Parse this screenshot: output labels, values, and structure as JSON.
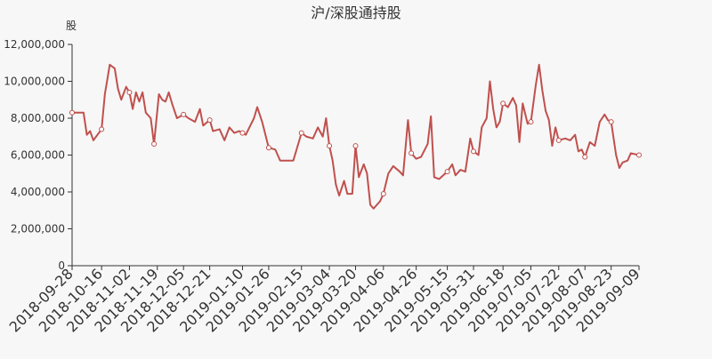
{
  "chart_data": {
    "type": "line",
    "title": "沪/深股通持股",
    "ylabel": "股",
    "xlabel": "",
    "ylim": [
      0,
      12000000
    ],
    "y_ticks": [
      "0",
      "2,000,000",
      "4,000,000",
      "6,000,000",
      "8,000,000",
      "10,000,000",
      "12,000,000"
    ],
    "x_ticks": [
      "2018-09-28",
      "2018-10-16",
      "2018-11-02",
      "2018-11-19",
      "2018-12-05",
      "2018-12-21",
      "2019-01-10",
      "2019-01-26",
      "2019-02-15",
      "2019-03-04",
      "2019-03-20",
      "2019-04-06",
      "2019-04-26",
      "2019-05-15",
      "2019-05-31",
      "2019-06-18",
      "2019-07-05",
      "2019-07-22",
      "2019-08-07",
      "2019-08-23",
      "2019-09-09"
    ],
    "x_range": [
      "2018-09-28",
      "2019-09-09"
    ],
    "series": [
      {
        "color": "#c0504d",
        "points": [
          [
            "2018-09-28",
            8300000
          ],
          [
            "2018-10-05",
            8300000
          ],
          [
            "2018-10-07",
            7100000
          ],
          [
            "2018-10-09",
            7300000
          ],
          [
            "2018-10-11",
            6800000
          ],
          [
            "2018-10-16",
            7400000
          ],
          [
            "2018-10-18",
            9300000
          ],
          [
            "2018-10-21",
            10900000
          ],
          [
            "2018-10-24",
            10700000
          ],
          [
            "2018-10-26",
            9600000
          ],
          [
            "2018-10-28",
            9000000
          ],
          [
            "2018-10-31",
            9700000
          ],
          [
            "2018-11-02",
            9400000
          ],
          [
            "2018-11-04",
            8500000
          ],
          [
            "2018-11-06",
            9400000
          ],
          [
            "2018-11-08",
            8900000
          ],
          [
            "2018-11-10",
            9400000
          ],
          [
            "2018-11-12",
            8300000
          ],
          [
            "2018-11-15",
            8000000
          ],
          [
            "2018-11-17",
            6600000
          ],
          [
            "2018-11-20",
            9300000
          ],
          [
            "2018-11-22",
            9000000
          ],
          [
            "2018-11-24",
            8900000
          ],
          [
            "2018-11-26",
            9400000
          ],
          [
            "2018-11-28",
            8800000
          ],
          [
            "2018-12-01",
            8000000
          ],
          [
            "2018-12-05",
            8200000
          ],
          [
            "2018-12-08",
            8000000
          ],
          [
            "2018-12-12",
            7800000
          ],
          [
            "2018-12-15",
            8500000
          ],
          [
            "2018-12-17",
            7600000
          ],
          [
            "2018-12-21",
            7900000
          ],
          [
            "2018-12-23",
            7300000
          ],
          [
            "2018-12-27",
            7400000
          ],
          [
            "2018-12-30",
            6800000
          ],
          [
            "2019-01-02",
            7500000
          ],
          [
            "2019-01-05",
            7200000
          ],
          [
            "2019-01-08",
            7300000
          ],
          [
            "2019-01-10",
            7200000
          ],
          [
            "2019-01-12",
            7100000
          ],
          [
            "2019-01-17",
            8000000
          ],
          [
            "2019-01-19",
            8600000
          ],
          [
            "2019-01-22",
            7800000
          ],
          [
            "2019-01-26",
            6400000
          ],
          [
            "2019-01-30",
            6300000
          ],
          [
            "2019-02-02",
            5700000
          ],
          [
            "2019-02-06",
            5700000
          ],
          [
            "2019-02-10",
            5700000
          ],
          [
            "2019-02-15",
            7200000
          ],
          [
            "2019-02-18",
            7000000
          ],
          [
            "2019-02-22",
            6900000
          ],
          [
            "2019-02-25",
            7500000
          ],
          [
            "2019-02-28",
            7000000
          ],
          [
            "2019-03-02",
            8000000
          ],
          [
            "2019-03-04",
            6500000
          ],
          [
            "2019-03-06",
            5700000
          ],
          [
            "2019-03-08",
            4400000
          ],
          [
            "2019-03-10",
            3800000
          ],
          [
            "2019-03-13",
            4600000
          ],
          [
            "2019-03-15",
            3900000
          ],
          [
            "2019-03-18",
            3900000
          ],
          [
            "2019-03-20",
            6500000
          ],
          [
            "2019-03-22",
            4800000
          ],
          [
            "2019-03-25",
            5500000
          ],
          [
            "2019-03-27",
            5000000
          ],
          [
            "2019-03-29",
            3300000
          ],
          [
            "2019-03-31",
            3100000
          ],
          [
            "2019-04-04",
            3500000
          ],
          [
            "2019-04-06",
            3900000
          ],
          [
            "2019-04-09",
            5000000
          ],
          [
            "2019-04-12",
            5400000
          ],
          [
            "2019-04-16",
            5100000
          ],
          [
            "2019-04-18",
            4900000
          ],
          [
            "2019-04-21",
            7900000
          ],
          [
            "2019-04-23",
            6100000
          ],
          [
            "2019-04-26",
            5800000
          ],
          [
            "2019-04-29",
            5900000
          ],
          [
            "2019-05-03",
            6600000
          ],
          [
            "2019-05-05",
            8100000
          ],
          [
            "2019-05-07",
            4800000
          ],
          [
            "2019-05-10",
            4700000
          ],
          [
            "2019-05-15",
            5100000
          ],
          [
            "2019-05-18",
            5500000
          ],
          [
            "2019-05-20",
            4900000
          ],
          [
            "2019-05-23",
            5200000
          ],
          [
            "2019-05-26",
            5100000
          ],
          [
            "2019-05-29",
            6900000
          ],
          [
            "2019-05-31",
            6200000
          ],
          [
            "2019-06-03",
            6000000
          ],
          [
            "2019-06-05",
            7500000
          ],
          [
            "2019-06-08",
            8000000
          ],
          [
            "2019-06-10",
            10000000
          ],
          [
            "2019-06-12",
            8500000
          ],
          [
            "2019-06-14",
            7500000
          ],
          [
            "2019-06-16",
            7800000
          ],
          [
            "2019-06-18",
            8800000
          ],
          [
            "2019-06-21",
            8600000
          ],
          [
            "2019-06-24",
            9100000
          ],
          [
            "2019-06-26",
            8700000
          ],
          [
            "2019-06-28",
            6700000
          ],
          [
            "2019-06-30",
            8800000
          ],
          [
            "2019-07-03",
            7700000
          ],
          [
            "2019-07-05",
            7800000
          ],
          [
            "2019-07-08",
            9800000
          ],
          [
            "2019-07-10",
            10900000
          ],
          [
            "2019-07-12",
            9500000
          ],
          [
            "2019-07-14",
            8400000
          ],
          [
            "2019-07-16",
            7900000
          ],
          [
            "2019-07-18",
            6500000
          ],
          [
            "2019-07-20",
            7500000
          ],
          [
            "2019-07-22",
            6800000
          ],
          [
            "2019-07-26",
            6900000
          ],
          [
            "2019-07-29",
            6800000
          ],
          [
            "2019-08-01",
            7100000
          ],
          [
            "2019-08-03",
            6200000
          ],
          [
            "2019-08-05",
            6300000
          ],
          [
            "2019-08-07",
            5900000
          ],
          [
            "2019-08-10",
            6700000
          ],
          [
            "2019-08-13",
            6500000
          ],
          [
            "2019-08-16",
            7800000
          ],
          [
            "2019-08-19",
            8200000
          ],
          [
            "2019-08-21",
            7900000
          ],
          [
            "2019-08-23",
            7800000
          ],
          [
            "2019-08-26",
            6000000
          ],
          [
            "2019-08-28",
            5300000
          ],
          [
            "2019-08-30",
            5600000
          ],
          [
            "2019-09-02",
            5700000
          ],
          [
            "2019-09-04",
            6100000
          ],
          [
            "2019-09-09",
            6000000
          ]
        ],
        "markers": [
          [
            "2018-09-28",
            8300000
          ],
          [
            "2018-10-16",
            7400000
          ],
          [
            "2018-11-02",
            9400000
          ],
          [
            "2018-11-17",
            6600000
          ],
          [
            "2018-12-05",
            8200000
          ],
          [
            "2018-12-21",
            7900000
          ],
          [
            "2019-01-10",
            7200000
          ],
          [
            "2019-01-26",
            6400000
          ],
          [
            "2019-02-15",
            7200000
          ],
          [
            "2019-03-04",
            6500000
          ],
          [
            "2019-03-20",
            6500000
          ],
          [
            "2019-04-06",
            3900000
          ],
          [
            "2019-04-23",
            6100000
          ],
          [
            "2019-05-15",
            5100000
          ],
          [
            "2019-05-31",
            6200000
          ],
          [
            "2019-06-18",
            8800000
          ],
          [
            "2019-07-05",
            7800000
          ],
          [
            "2019-07-22",
            6800000
          ],
          [
            "2019-08-07",
            5900000
          ],
          [
            "2019-08-23",
            7800000
          ],
          [
            "2019-09-09",
            6000000
          ]
        ]
      }
    ],
    "grid": false,
    "legend": "none"
  }
}
